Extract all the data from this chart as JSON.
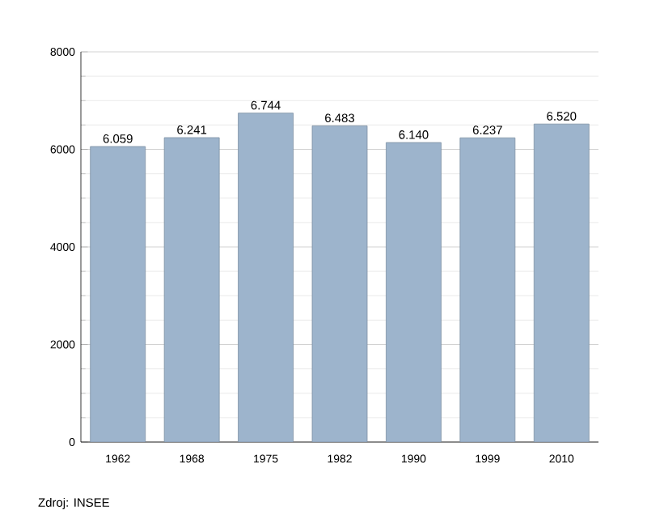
{
  "chart_data": {
    "type": "bar",
    "categories": [
      "1962",
      "1968",
      "1975",
      "1982",
      "1990",
      "1999",
      "2010"
    ],
    "values": [
      6059,
      6241,
      6744,
      6483,
      6140,
      6237,
      6520
    ],
    "value_labels": [
      "6.059",
      "6.241",
      "6.744",
      "6.483",
      "6.140",
      "6.237",
      "6.520"
    ],
    "color": "#9db4cc",
    "ylim": [
      0,
      8000
    ],
    "yticks": [
      0,
      2000,
      4000,
      6000,
      8000
    ],
    "grid": "y",
    "annotations": [
      "Zdroj: INSEE"
    ]
  }
}
